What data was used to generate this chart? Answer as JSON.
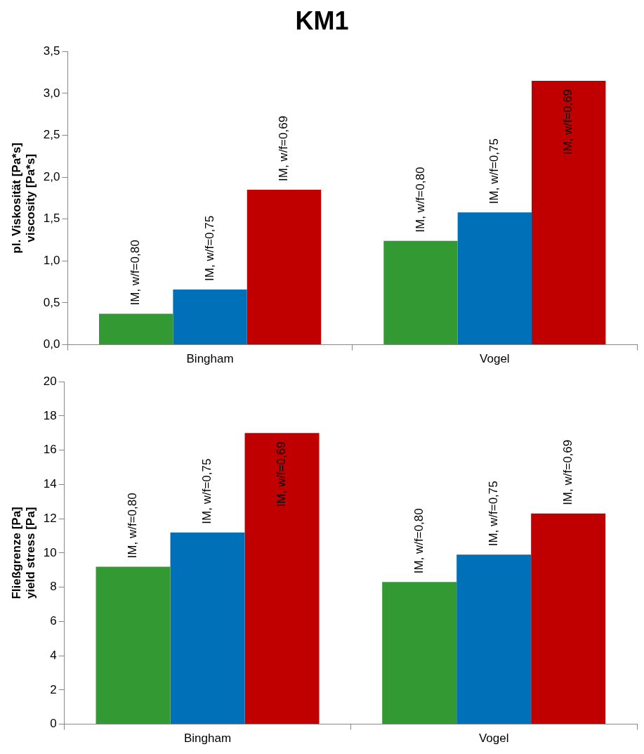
{
  "chart_data": [
    {
      "type": "bar",
      "title": "KM1",
      "ylabel": "pl. Viskosität [Pa*s]\nviscosity [Pa*s]",
      "categories": [
        "Bingham",
        "Vogel"
      ],
      "series": [
        {
          "name": "IM, w/f=0,80",
          "color": "#339933",
          "values": [
            0.37,
            1.24
          ]
        },
        {
          "name": "IM, w/f=0,75",
          "color": "#0070b8",
          "values": [
            0.66,
            1.58
          ]
        },
        {
          "name": "IM, w/f=0,69",
          "color": "#c00000",
          "values": [
            1.85,
            3.15
          ]
        }
      ],
      "ylim": [
        0,
        3.5
      ],
      "yticks": [
        {
          "value": 0,
          "label": "0,0"
        },
        {
          "value": 0.5,
          "label": "0,5"
        },
        {
          "value": 1,
          "label": "1,0"
        },
        {
          "value": 1.5,
          "label": "1,5"
        },
        {
          "value": 2,
          "label": "2,0"
        },
        {
          "value": 2.5,
          "label": "2,5"
        },
        {
          "value": 3,
          "label": "3,0"
        },
        {
          "value": 3.5,
          "label": "3,5"
        }
      ],
      "grid": false,
      "legend": false
    },
    {
      "type": "bar",
      "ylabel": "Fließgrenze [Pa]\nyield stress [Pa]",
      "categories": [
        "Bingham",
        "Vogel"
      ],
      "series": [
        {
          "name": "IM, w/f=0,80",
          "color": "#339933",
          "values": [
            9.2,
            8.3
          ]
        },
        {
          "name": "IM, w/f=0,75",
          "color": "#0070b8",
          "values": [
            11.2,
            9.9
          ]
        },
        {
          "name": "IM, w/f=0,69",
          "color": "#c00000",
          "values": [
            17.0,
            12.3
          ]
        }
      ],
      "ylim": [
        0,
        20
      ],
      "yticks": [
        0,
        2,
        4,
        6,
        8,
        10,
        12,
        14,
        16,
        18,
        20
      ],
      "grid": false,
      "legend": false
    }
  ]
}
